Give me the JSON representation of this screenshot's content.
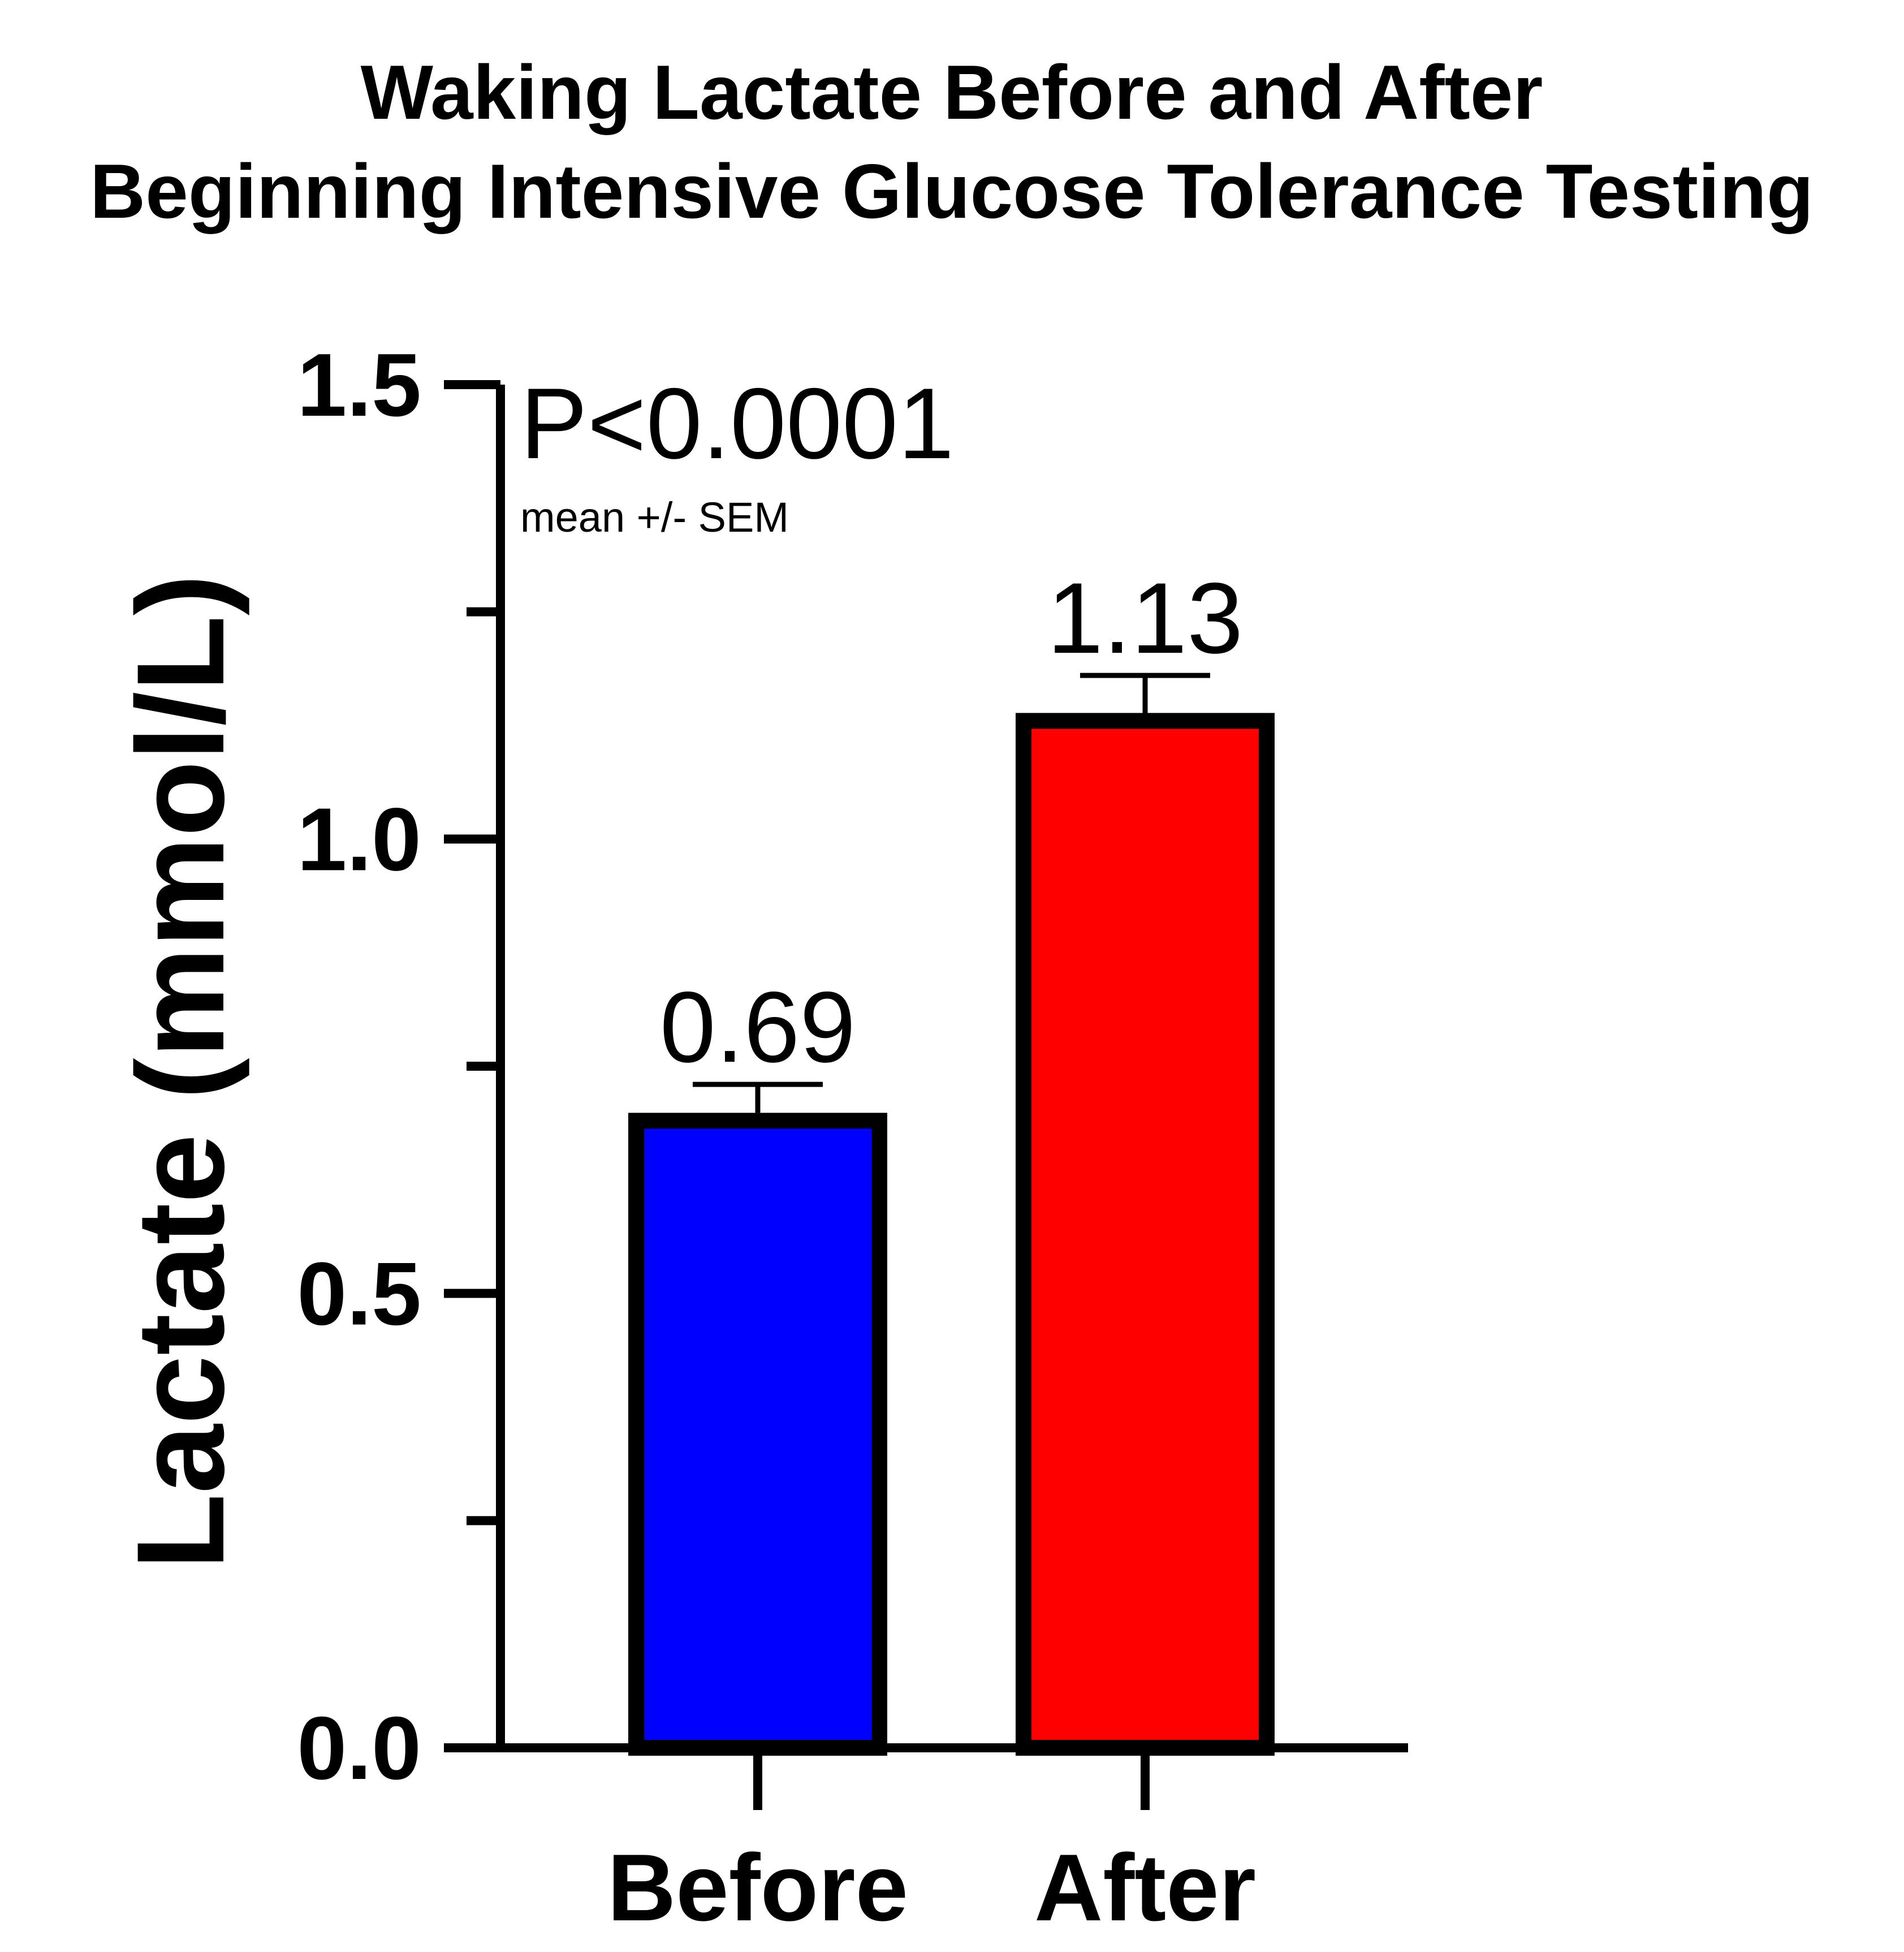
{
  "chart_data": {
    "type": "bar",
    "title_lines": [
      "Waking Lactate Before and After",
      "Beginning Intensive Glucose Tolerance Testing"
    ],
    "xlabel": "",
    "ylabel": "Lactate (mmol/L)",
    "categories": [
      "Before",
      "After"
    ],
    "values": [
      0.69,
      1.13
    ],
    "errors": [
      0.04,
      0.05
    ],
    "data_labels": [
      "0.69",
      "1.13"
    ],
    "bar_colors": [
      "#0000ff",
      "#ff0000"
    ],
    "edge_color": "#000000",
    "ylim": [
      0,
      1.5
    ],
    "yticks": [
      0.0,
      0.25,
      0.5,
      0.75,
      1.0,
      1.25,
      1.5
    ],
    "ytick_labels": [
      "0.0",
      "",
      "0.5",
      "",
      "1.0",
      "",
      "1.5"
    ],
    "annotations": [
      "P<0.0001",
      "mean +/- SEM"
    ],
    "grid": false,
    "legend": "none"
  }
}
